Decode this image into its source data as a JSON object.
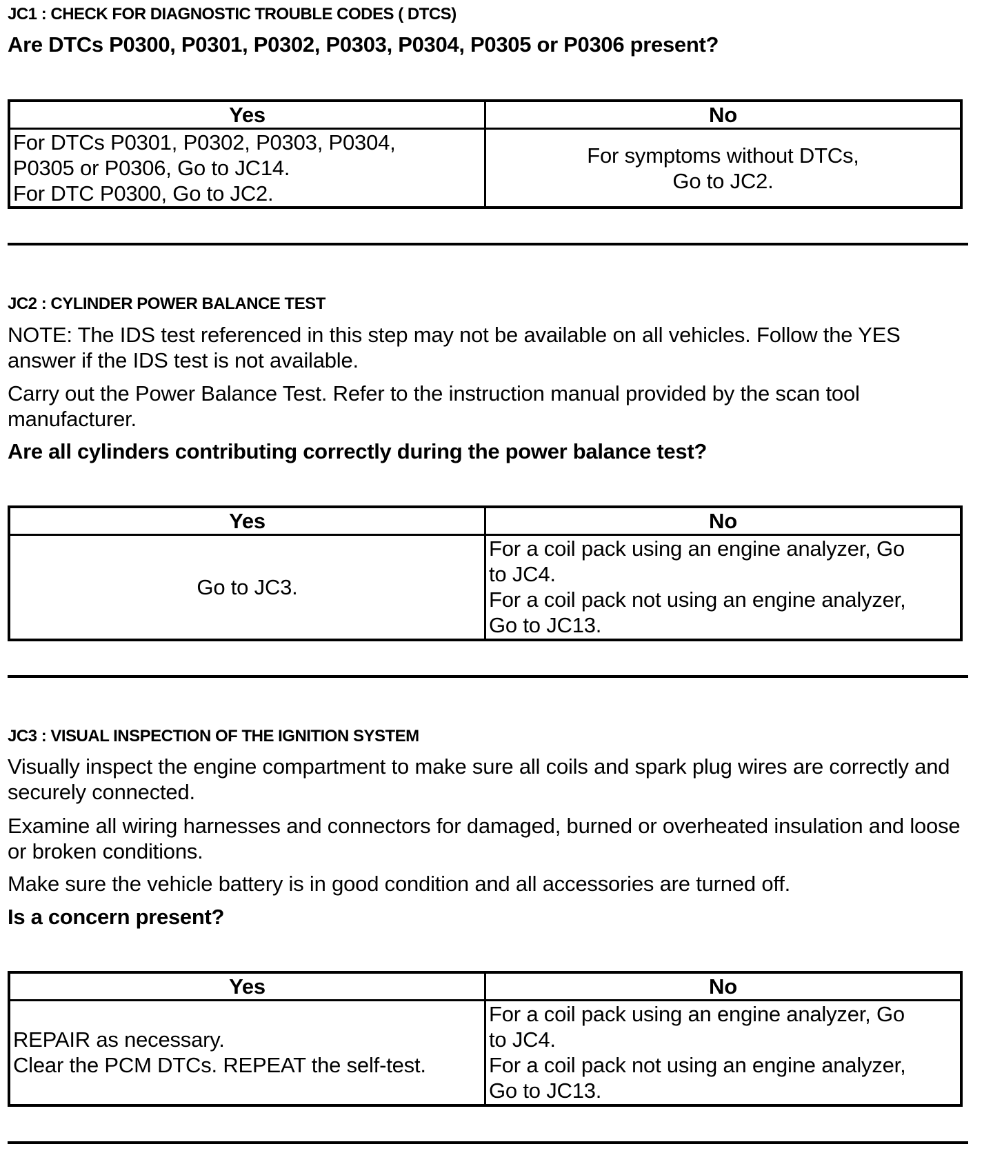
{
  "sections": [
    {
      "heading": "JC1 : CHECK FOR DIAGNOSTIC TROUBLE CODES ( DTCS)",
      "question": "Are DTCs P0300, P0301, P0302, P0303, P0304, P0305 or P0306 present?",
      "table": {
        "yes_header": "Yes",
        "no_header": "No",
        "yes_lines": [
          "For DTCs P0301, P0302, P0303, P0304,",
          "P0305 or P0306, Go to JC14.",
          "For DTC P0300, Go to JC2."
        ],
        "no_lines": [
          "For symptoms without DTCs,",
          "Go to JC2."
        ]
      }
    },
    {
      "heading": "JC2 : CYLINDER POWER BALANCE TEST",
      "paragraphs": [
        "NOTE: The IDS test referenced in this step may not be available on all vehicles. Follow the YES answer if the IDS test is not available.",
        "Carry out the Power Balance Test. Refer to the instruction manual provided by the scan tool manufacturer."
      ],
      "question": "Are all cylinders contributing correctly during the power balance test?",
      "table": {
        "yes_header": "Yes",
        "no_header": "No",
        "yes_lines": [
          "Go to JC3."
        ],
        "no_lines": [
          "For a coil pack using an engine analyzer, Go",
          "to JC4.",
          "For a coil pack not using an engine analyzer,",
          "Go to JC13."
        ]
      }
    },
    {
      "heading": "JC3 : VISUAL INSPECTION OF THE IGNITION SYSTEM",
      "paragraphs": [
        "Visually inspect the engine compartment to make sure all coils and spark plug wires are correctly and securely connected.",
        "Examine all wiring harnesses and connectors for damaged, burned or overheated insulation and loose or broken conditions.",
        "Make sure the vehicle battery is in good condition and all accessories are turned off."
      ],
      "question": "Is a concern present?",
      "table": {
        "yes_header": "Yes",
        "no_header": "No",
        "yes_lines": [
          "REPAIR as necessary.",
          "Clear the PCM DTCs. REPEAT the self-test."
        ],
        "no_lines": [
          "For a coil pack using an engine analyzer, Go",
          "to JC4.",
          "For a coil pack not using an engine analyzer,",
          "Go to JC13."
        ]
      }
    }
  ]
}
